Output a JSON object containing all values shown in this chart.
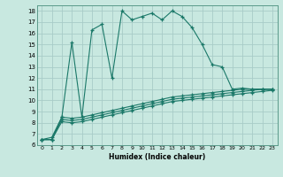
{
  "xlabel": "Humidex (Indice chaleur)",
  "bg_color": "#c8e8e0",
  "grid_color": "#a8ccc8",
  "line_color": "#1a7868",
  "xlim": [
    -0.5,
    23.5
  ],
  "ylim": [
    6,
    18.5
  ],
  "xticks": [
    0,
    1,
    2,
    3,
    4,
    5,
    6,
    7,
    8,
    9,
    10,
    11,
    12,
    13,
    14,
    15,
    16,
    17,
    18,
    19,
    20,
    21,
    22,
    23
  ],
  "yticks": [
    6,
    7,
    8,
    9,
    10,
    11,
    12,
    13,
    14,
    15,
    16,
    17,
    18
  ],
  "line1_x": [
    0,
    1,
    2,
    3,
    4,
    5,
    6,
    7,
    8,
    9,
    10,
    11,
    12,
    13,
    14,
    15,
    16,
    17,
    18,
    19,
    20,
    21,
    22,
    23
  ],
  "line1_y": [
    6.5,
    6.7,
    8.5,
    15.2,
    8.5,
    16.3,
    16.8,
    12.0,
    18.0,
    17.2,
    17.5,
    17.8,
    17.2,
    18.0,
    17.5,
    16.5,
    15.0,
    13.2,
    13.0,
    11.0,
    11.1,
    11.0,
    11.0,
    11.0
  ],
  "line2_x": [
    0,
    1,
    2,
    3,
    4,
    5,
    6,
    7,
    8,
    9,
    10,
    11,
    12,
    13,
    14,
    15,
    16,
    17,
    18,
    19,
    20,
    21,
    22,
    23
  ],
  "line2_y": [
    6.5,
    6.5,
    8.5,
    8.4,
    8.5,
    8.7,
    8.9,
    9.1,
    9.3,
    9.5,
    9.7,
    9.9,
    10.1,
    10.3,
    10.4,
    10.5,
    10.6,
    10.7,
    10.8,
    10.9,
    11.0,
    11.0,
    11.0,
    11.0
  ],
  "line3_x": [
    0,
    1,
    2,
    3,
    4,
    5,
    6,
    7,
    8,
    9,
    10,
    11,
    12,
    13,
    14,
    15,
    16,
    17,
    18,
    19,
    20,
    21,
    22,
    23
  ],
  "line3_y": [
    6.5,
    6.5,
    8.3,
    8.2,
    8.3,
    8.5,
    8.7,
    8.9,
    9.1,
    9.3,
    9.5,
    9.7,
    9.9,
    10.1,
    10.2,
    10.3,
    10.4,
    10.5,
    10.6,
    10.7,
    10.8,
    10.9,
    11.0,
    11.0
  ],
  "line4_x": [
    0,
    1,
    2,
    3,
    4,
    5,
    6,
    7,
    8,
    9,
    10,
    11,
    12,
    13,
    14,
    15,
    16,
    17,
    18,
    19,
    20,
    21,
    22,
    23
  ],
  "line4_y": [
    6.5,
    6.5,
    8.1,
    8.0,
    8.1,
    8.3,
    8.5,
    8.7,
    8.9,
    9.1,
    9.3,
    9.5,
    9.7,
    9.9,
    10.0,
    10.1,
    10.2,
    10.3,
    10.4,
    10.5,
    10.6,
    10.7,
    10.8,
    10.9
  ]
}
